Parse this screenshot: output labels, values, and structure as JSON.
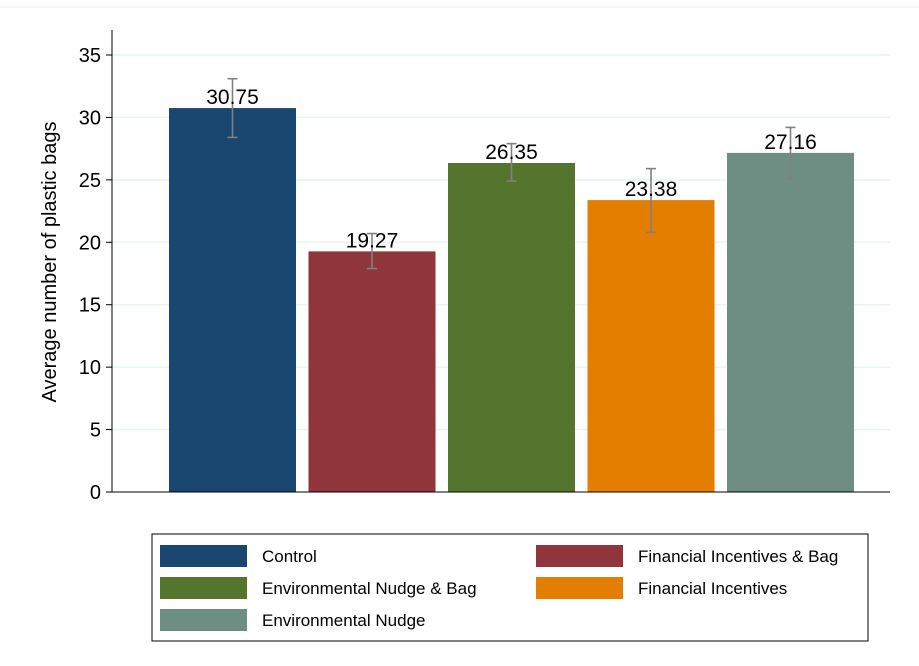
{
  "chart_data": {
    "type": "bar",
    "title": "",
    "xlabel": "",
    "ylabel": "Average number of plastic bags",
    "ylim": [
      0,
      35
    ],
    "yticks": [
      0,
      5,
      10,
      15,
      20,
      25,
      30,
      35
    ],
    "grid": true,
    "legend_position": "bottom",
    "series": [
      {
        "name": "Control",
        "value": 30.75,
        "label": "30.75",
        "ci": [
          28.4,
          33.1
        ],
        "color": "#1a476f"
      },
      {
        "name": "Financial Incentives & Bag",
        "value": 19.27,
        "label": "19.27",
        "ci": [
          17.9,
          20.7
        ],
        "color": "#90353b"
      },
      {
        "name": "Environmental Nudge & Bag",
        "value": 26.35,
        "label": "26.35",
        "ci": [
          24.9,
          27.9
        ],
        "color": "#55752f"
      },
      {
        "name": "Financial Incentives",
        "value": 23.38,
        "label": "23.38",
        "ci": [
          20.8,
          25.9
        ],
        "color": "#e37e00"
      },
      {
        "name": "Environmental Nudge",
        "value": 27.16,
        "label": "27.16",
        "ci": [
          25.1,
          29.2
        ],
        "color": "#6e8e84"
      }
    ],
    "error_bar_color": "#808080"
  }
}
